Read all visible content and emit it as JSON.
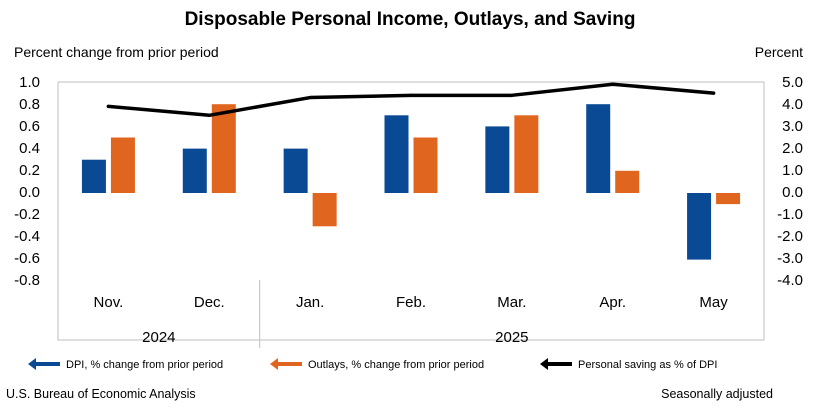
{
  "chart_data": {
    "type": "bar",
    "title": "Disposable Personal Income, Outlays, and Saving",
    "ylabel_left": "Percent change from prior period",
    "ylabel_right": "Percent",
    "categories": [
      "Nov.",
      "Dec.",
      "Jan.",
      "Feb.",
      "Mar.",
      "Apr.",
      "May"
    ],
    "year_groups": [
      {
        "label": "2024",
        "categories": [
          "Nov.",
          "Dec."
        ]
      },
      {
        "label": "2025",
        "categories": [
          "Jan.",
          "Feb.",
          "Mar.",
          "Apr.",
          "May"
        ]
      }
    ],
    "ylim_left": [
      -0.8,
      1.0
    ],
    "ylim_right": [
      -4.0,
      5.0
    ],
    "yticks_left": [
      "1.0",
      "0.8",
      "0.6",
      "0.4",
      "0.2",
      "0.0",
      "-0.2",
      "-0.4",
      "-0.6",
      "-0.8"
    ],
    "yticks_right": [
      "5.0",
      "4.0",
      "3.0",
      "2.0",
      "1.0",
      "0.0",
      "-1.0",
      "-2.0",
      "-3.0",
      "-4.0"
    ],
    "series": [
      {
        "name": "DPI, % change from prior period",
        "type": "bar",
        "axis": "left",
        "color": "#0a4a94",
        "values": [
          0.3,
          0.4,
          0.4,
          0.7,
          0.6,
          0.8,
          -0.6
        ]
      },
      {
        "name": "Outlays, % change from prior period",
        "type": "bar",
        "axis": "left",
        "color": "#e0661f",
        "values": [
          0.5,
          0.8,
          -0.3,
          0.5,
          0.7,
          0.2,
          -0.1
        ]
      },
      {
        "name": "Personal saving as % of DPI",
        "type": "line",
        "axis": "right",
        "color": "#000000",
        "values": [
          3.9,
          3.5,
          4.3,
          4.4,
          4.4,
          4.9,
          4.5
        ]
      }
    ],
    "grid": false,
    "legend_position": "bottom"
  },
  "footer": {
    "source": "U.S. Bureau of Economic Analysis",
    "note": "Seasonally adjusted"
  }
}
